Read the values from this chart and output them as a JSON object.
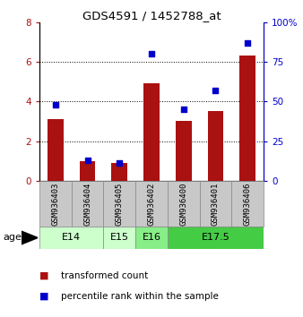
{
  "title": "GDS4591 / 1452788_at",
  "samples": [
    "GSM936403",
    "GSM936404",
    "GSM936405",
    "GSM936402",
    "GSM936400",
    "GSM936401",
    "GSM936406"
  ],
  "transformed_count": [
    3.1,
    1.0,
    0.9,
    4.9,
    3.0,
    3.5,
    6.3
  ],
  "percentile_rank": [
    48,
    13,
    11,
    80,
    45,
    57,
    87
  ],
  "left_ylim": [
    0,
    8
  ],
  "right_ylim": [
    0,
    100
  ],
  "left_yticks": [
    0,
    2,
    4,
    6,
    8
  ],
  "right_yticks": [
    0,
    25,
    50,
    75,
    100
  ],
  "right_yticklabels": [
    "0",
    "25",
    "50",
    "75",
    "100%"
  ],
  "left_ytick_labels": [
    "0",
    "2",
    "4",
    "6",
    "8"
  ],
  "bar_color": "#AA1111",
  "square_color": "#0000CC",
  "age_groups": [
    {
      "label": "E14",
      "color": "#CCFFCC",
      "xstart": 0,
      "xend": 2
    },
    {
      "label": "E15",
      "color": "#CCFFCC",
      "xstart": 2,
      "xend": 3
    },
    {
      "label": "E16",
      "color": "#88EE88",
      "xstart": 3,
      "xend": 4
    },
    {
      "label": "E17.5",
      "color": "#44CC44",
      "xstart": 4,
      "xend": 7
    }
  ],
  "legend_red_label": "transformed count",
  "legend_blue_label": "percentile rank within the sample",
  "age_label": "age",
  "bar_width": 0.5,
  "square_size": 25,
  "gray_box_color": "#C8C8C8",
  "gray_box_edge": "#888888"
}
